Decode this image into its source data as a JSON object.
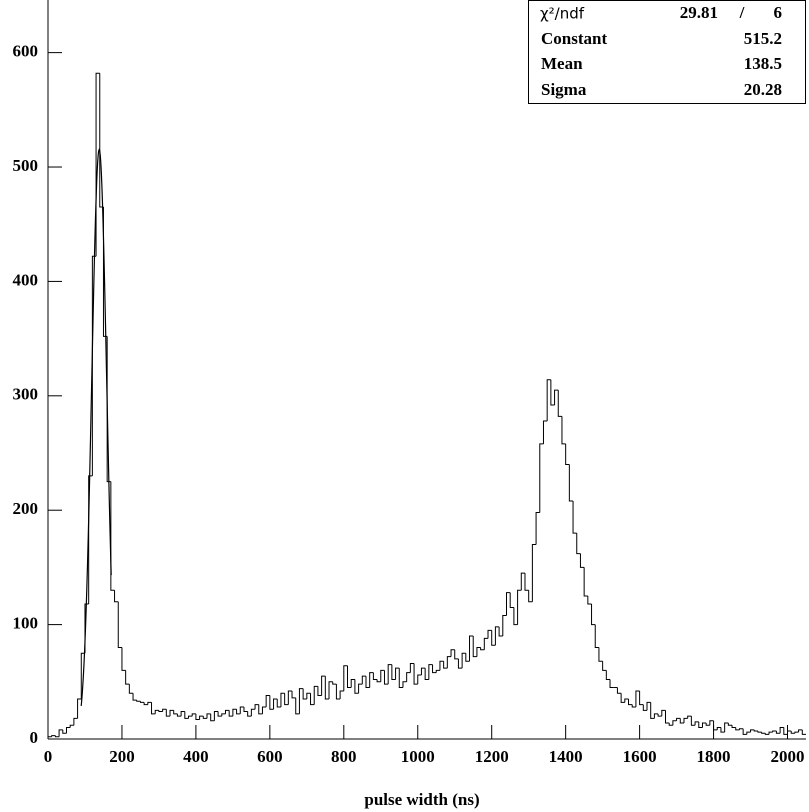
{
  "chart_data": {
    "type": "histogram",
    "x_label": "pulse width (ns)",
    "color": "#000000",
    "xlim": [
      0,
      2050
    ],
    "ylim": [
      0,
      646
    ],
    "xticks": [
      0,
      200,
      400,
      600,
      800,
      1000,
      1200,
      1400,
      1600,
      1800,
      2000
    ],
    "yticks": [
      0,
      100,
      200,
      300,
      400,
      500,
      600
    ],
    "bins": [
      0,
      10,
      20,
      30,
      40,
      50,
      60,
      70,
      80,
      90,
      100,
      110,
      120,
      130,
      140,
      150,
      160,
      170,
      180,
      190,
      200,
      210,
      220,
      230,
      240,
      250,
      260,
      270,
      280,
      290,
      300,
      310,
      320,
      330,
      340,
      350,
      360,
      370,
      380,
      390,
      400,
      410,
      420,
      430,
      440,
      450,
      460,
      470,
      480,
      490,
      500,
      510,
      520,
      530,
      540,
      550,
      560,
      570,
      580,
      590,
      600,
      610,
      620,
      630,
      640,
      650,
      660,
      670,
      680,
      690,
      700,
      710,
      720,
      730,
      740,
      750,
      760,
      770,
      780,
      790,
      800,
      810,
      820,
      830,
      840,
      850,
      860,
      870,
      880,
      890,
      900,
      910,
      920,
      930,
      940,
      950,
      960,
      970,
      980,
      990,
      1000,
      1010,
      1020,
      1030,
      1040,
      1050,
      1060,
      1070,
      1080,
      1090,
      1100,
      1110,
      1120,
      1130,
      1140,
      1150,
      1160,
      1170,
      1180,
      1190,
      1200,
      1210,
      1220,
      1230,
      1240,
      1250,
      1260,
      1270,
      1280,
      1290,
      1300,
      1310,
      1320,
      1330,
      1340,
      1350,
      1360,
      1370,
      1380,
      1390,
      1400,
      1410,
      1420,
      1430,
      1440,
      1450,
      1460,
      1470,
      1480,
      1490,
      1500,
      1510,
      1520,
      1530,
      1540,
      1550,
      1560,
      1570,
      1580,
      1590,
      1600,
      1610,
      1620,
      1630,
      1640,
      1650,
      1660,
      1670,
      1680,
      1690,
      1700,
      1710,
      1720,
      1730,
      1740,
      1750,
      1760,
      1770,
      1780,
      1790,
      1800,
      1810,
      1820,
      1830,
      1840,
      1850,
      1860,
      1870,
      1880,
      1890,
      1900,
      1910,
      1920,
      1930,
      1940,
      1950,
      1960,
      1970,
      1980,
      1990,
      2000,
      2010,
      2020,
      2030,
      2040,
      2050
    ],
    "values": [
      2,
      3,
      2,
      8,
      5,
      10,
      12,
      18,
      35,
      75,
      118,
      230,
      422,
      582,
      465,
      352,
      225,
      130,
      120,
      80,
      60,
      48,
      40,
      34,
      33,
      32,
      30,
      32,
      22,
      25,
      24,
      26,
      20,
      25,
      22,
      20,
      24,
      18,
      20,
      22,
      17,
      20,
      18,
      22,
      16,
      24,
      20,
      22,
      25,
      20,
      26,
      22,
      28,
      24,
      20,
      26,
      30,
      22,
      28,
      38,
      26,
      35,
      28,
      40,
      30,
      42,
      36,
      22,
      44,
      35,
      40,
      30,
      46,
      38,
      55,
      35,
      50,
      48,
      35,
      42,
      64,
      45,
      52,
      40,
      48,
      55,
      45,
      58,
      52,
      50,
      60,
      48,
      65,
      52,
      62,
      45,
      50,
      58,
      66,
      48,
      56,
      62,
      52,
      65,
      58,
      60,
      68,
      62,
      72,
      78,
      70,
      62,
      75,
      68,
      90,
      72,
      80,
      78,
      88,
      95,
      82,
      98,
      90,
      108,
      128,
      115,
      100,
      130,
      145,
      130,
      120,
      170,
      198,
      258,
      278,
      314,
      292,
      305,
      282,
      258,
      240,
      208,
      180,
      162,
      150,
      125,
      118,
      100,
      80,
      68,
      60,
      52,
      45,
      45,
      40,
      32,
      35,
      30,
      28,
      42,
      30,
      25,
      32,
      18,
      22,
      20,
      25,
      14,
      12,
      16,
      18,
      14,
      18,
      20,
      12,
      15,
      10,
      14,
      12,
      16,
      8,
      10,
      6,
      14,
      12,
      10,
      8,
      9,
      4,
      6,
      8,
      7,
      6,
      5,
      4,
      6,
      7,
      5,
      10,
      4,
      7,
      5,
      6,
      8,
      4
    ],
    "fit": {
      "chi2_label": "χ²/ndf",
      "chi2": 29.81,
      "separator": "/",
      "ndf": 6,
      "constant_label": "Constant",
      "constant": 515.2,
      "mean_label": "Mean",
      "mean": 138.5,
      "sigma_label": "Sigma",
      "sigma": 20.28
    }
  }
}
